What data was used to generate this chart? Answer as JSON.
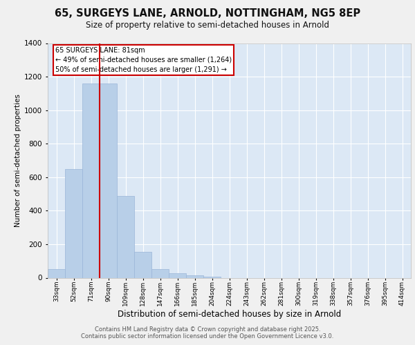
{
  "title_line1": "65, SURGEYS LANE, ARNOLD, NOTTINGHAM, NG5 8EP",
  "title_line2": "Size of property relative to semi-detached houses in Arnold",
  "xlabel": "Distribution of semi-detached houses by size in Arnold",
  "ylabel": "Number of semi-detached properties",
  "categories": [
    "33sqm",
    "52sqm",
    "71sqm",
    "90sqm",
    "109sqm",
    "128sqm",
    "147sqm",
    "166sqm",
    "185sqm",
    "204sqm",
    "224sqm",
    "243sqm",
    "262sqm",
    "281sqm",
    "300sqm",
    "319sqm",
    "338sqm",
    "357sqm",
    "376sqm",
    "395sqm",
    "414sqm"
  ],
  "values": [
    50,
    650,
    1160,
    1160,
    490,
    155,
    50,
    25,
    15,
    5,
    0,
    0,
    0,
    0,
    0,
    0,
    0,
    0,
    0,
    0,
    0
  ],
  "bar_color": "#b8cfe8",
  "bar_edgecolor": "#9ab5d8",
  "subject_label": "65 SURGEYS LANE: 81sqm",
  "annotation_line1": "← 49% of semi-detached houses are smaller (1,264)",
  "annotation_line2": "50% of semi-detached houses are larger (1,291) →",
  "box_facecolor": "white",
  "box_edgecolor": "#cc0000",
  "vline_color": "#cc0000",
  "ylim": [
    0,
    1400
  ],
  "yticks": [
    0,
    200,
    400,
    600,
    800,
    1000,
    1200,
    1400
  ],
  "bg_color": "#dce8f5",
  "fig_bg_color": "#f0f0f0",
  "footer_line1": "Contains HM Land Registry data © Crown copyright and database right 2025.",
  "footer_line2": "Contains public sector information licensed under the Open Government Licence v3.0.",
  "grid_color": "#ffffff"
}
